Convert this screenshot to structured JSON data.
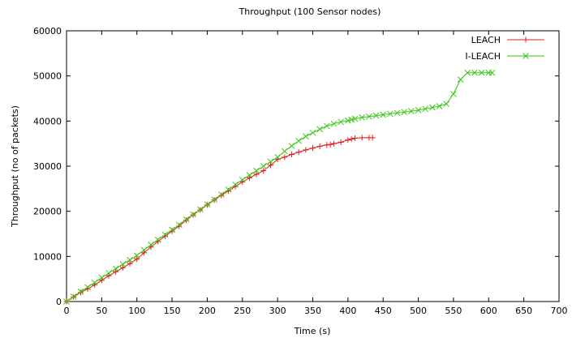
{
  "chart_data": {
    "type": "line",
    "title": "Throughput (100 Sensor nodes)",
    "xlabel": "Time (s)",
    "ylabel": "Throughput (no of packets)",
    "xlim": [
      0,
      700
    ],
    "ylim": [
      0,
      60000
    ],
    "xticks": [
      0,
      50,
      100,
      150,
      200,
      250,
      300,
      350,
      400,
      450,
      500,
      550,
      600,
      650,
      700
    ],
    "yticks": [
      0,
      10000,
      20000,
      30000,
      40000,
      50000,
      60000
    ],
    "grid": false,
    "legend_position": "top-right",
    "series": [
      {
        "name": "LEACH",
        "color": "#e8191b",
        "marker": "plus",
        "x": [
          0,
          10,
          20,
          30,
          40,
          50,
          60,
          70,
          80,
          90,
          100,
          110,
          120,
          130,
          140,
          150,
          160,
          170,
          180,
          190,
          200,
          210,
          220,
          230,
          240,
          250,
          260,
          270,
          280,
          290,
          300,
          310,
          320,
          330,
          340,
          350,
          360,
          370,
          375,
          380,
          390,
          400,
          405,
          410,
          420,
          430,
          435
        ],
        "y": [
          0,
          1000,
          2000,
          2800,
          3700,
          4700,
          5700,
          6600,
          7500,
          8400,
          9400,
          10800,
          12100,
          13300,
          14500,
          15600,
          16700,
          18000,
          19200,
          20300,
          21400,
          22500,
          23500,
          24500,
          25500,
          26500,
          27400,
          28200,
          29000,
          30200,
          31500,
          32000,
          32600,
          33100,
          33600,
          34000,
          34400,
          34700,
          34800,
          35000,
          35300,
          35800,
          36000,
          36200,
          36300,
          36300,
          36300
        ]
      },
      {
        "name": "I-LEACH",
        "color": "#3ec619",
        "marker": "cross",
        "x": [
          0,
          10,
          20,
          30,
          40,
          50,
          60,
          70,
          80,
          90,
          100,
          110,
          120,
          130,
          140,
          150,
          160,
          170,
          180,
          190,
          200,
          210,
          220,
          230,
          240,
          250,
          260,
          270,
          280,
          290,
          300,
          310,
          320,
          330,
          340,
          350,
          360,
          370,
          380,
          390,
          400,
          405,
          410,
          420,
          430,
          440,
          450,
          460,
          470,
          480,
          490,
          500,
          510,
          520,
          530,
          540,
          550,
          560,
          570,
          580,
          590,
          600,
          605
        ],
        "y": [
          0,
          1100,
          2200,
          3200,
          4200,
          5300,
          6300,
          7300,
          8300,
          9200,
          10200,
          11400,
          12600,
          13700,
          14800,
          15900,
          17000,
          18200,
          19300,
          20400,
          21500,
          22600,
          23700,
          24800,
          25900,
          27000,
          28000,
          29000,
          30000,
          31000,
          32000,
          33300,
          34500,
          35600,
          36600,
          37400,
          38200,
          38900,
          39400,
          39800,
          40100,
          40300,
          40500,
          40800,
          41000,
          41200,
          41400,
          41600,
          41800,
          42000,
          42200,
          42400,
          42700,
          43000,
          43300,
          43800,
          46000,
          49200,
          50700,
          50700,
          50700,
          50700,
          50700
        ]
      }
    ]
  }
}
